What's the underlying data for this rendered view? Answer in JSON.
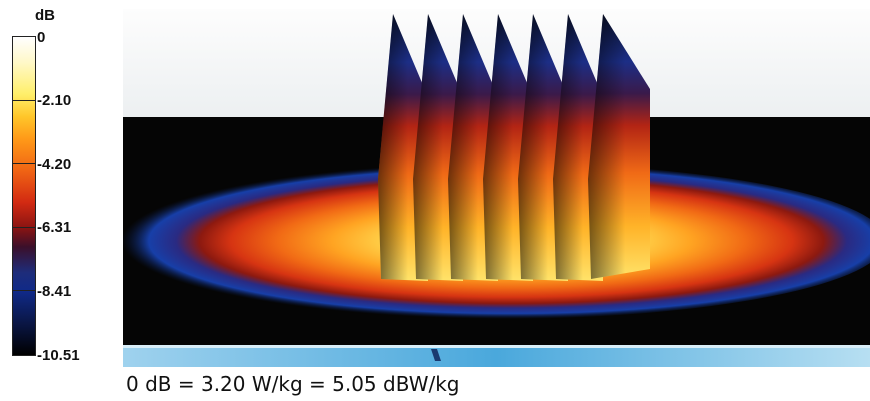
{
  "legend": {
    "unit": "dB",
    "ticks": [
      "0",
      "-2.10",
      "-4.20",
      "-6.31",
      "-8.41",
      "-10.51"
    ]
  },
  "caption": "0 dB = 3.20 W/kg = 5.05 dBW/kg"
}
